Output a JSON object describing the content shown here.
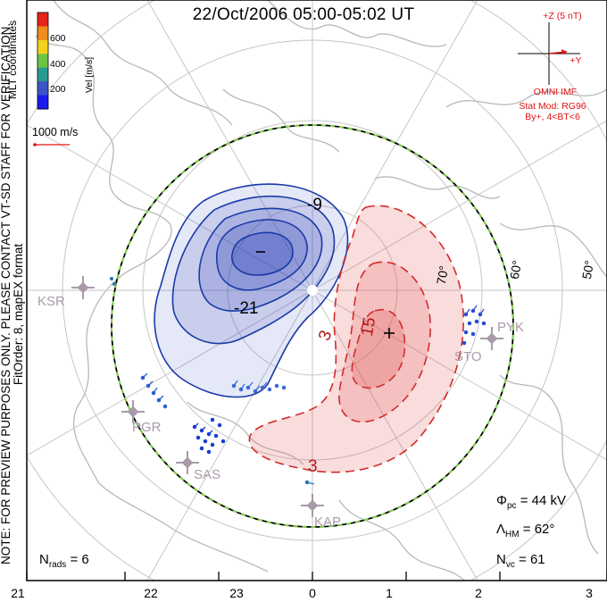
{
  "title": "22/Oct/2006 05:00-05:02 UT",
  "side_note_line1": "NOTE: FOR PREVIEW PURPOSES ONLY. PLEASE CONTACT VT-SD STAFF FOR VERIFICATION.",
  "side_note_line2": "FitOrder: 8, mapEX format",
  "coordinate_system": "MLT coordinates",
  "colorbar": {
    "label": "Vel [m/s]",
    "ticks": [
      "600",
      "400",
      "200"
    ],
    "colors": [
      "#e8231a",
      "#f08c1c",
      "#f2d21c",
      "#6cc444",
      "#2a9a90",
      "#3b55c8",
      "#1b1bf0"
    ]
  },
  "reference_vector": "1000 m/s",
  "imf": {
    "bz_label": "+Z (5 nT)",
    "by_label": "+Y",
    "source": "OMNI IMF",
    "model": "Stat Mod: RG96",
    "condition": "By+, 4<BT<6"
  },
  "latitude_labels": [
    "70°",
    "60°",
    "50°"
  ],
  "contour_labels": [
    "-9",
    "-21",
    "3",
    "15",
    "3"
  ],
  "polar_cap_potential": {
    "symbol": "Φ",
    "subscript": "pc",
    "value": "= 44 kV"
  },
  "heppner_maynard": {
    "symbol": "Λ",
    "subscript": "HM",
    "value": "= 62°"
  },
  "nvc": {
    "symbol": "N",
    "subscript": "vc",
    "value": "= 61"
  },
  "nrads": {
    "symbol": "N",
    "subscript": "rads",
    "value": "= 6"
  },
  "mlt_ticks": [
    "21",
    "22",
    "23",
    "0",
    "1",
    "2",
    "3"
  ],
  "stations": [
    "KSR",
    "PGR",
    "SAS",
    "KAP",
    "STO",
    "PYK"
  ],
  "colors": {
    "negative_cell": "#1a3aa8",
    "positive_cell": "#d42a2a",
    "imf": "#e01010",
    "station": "#a89aa8"
  }
}
